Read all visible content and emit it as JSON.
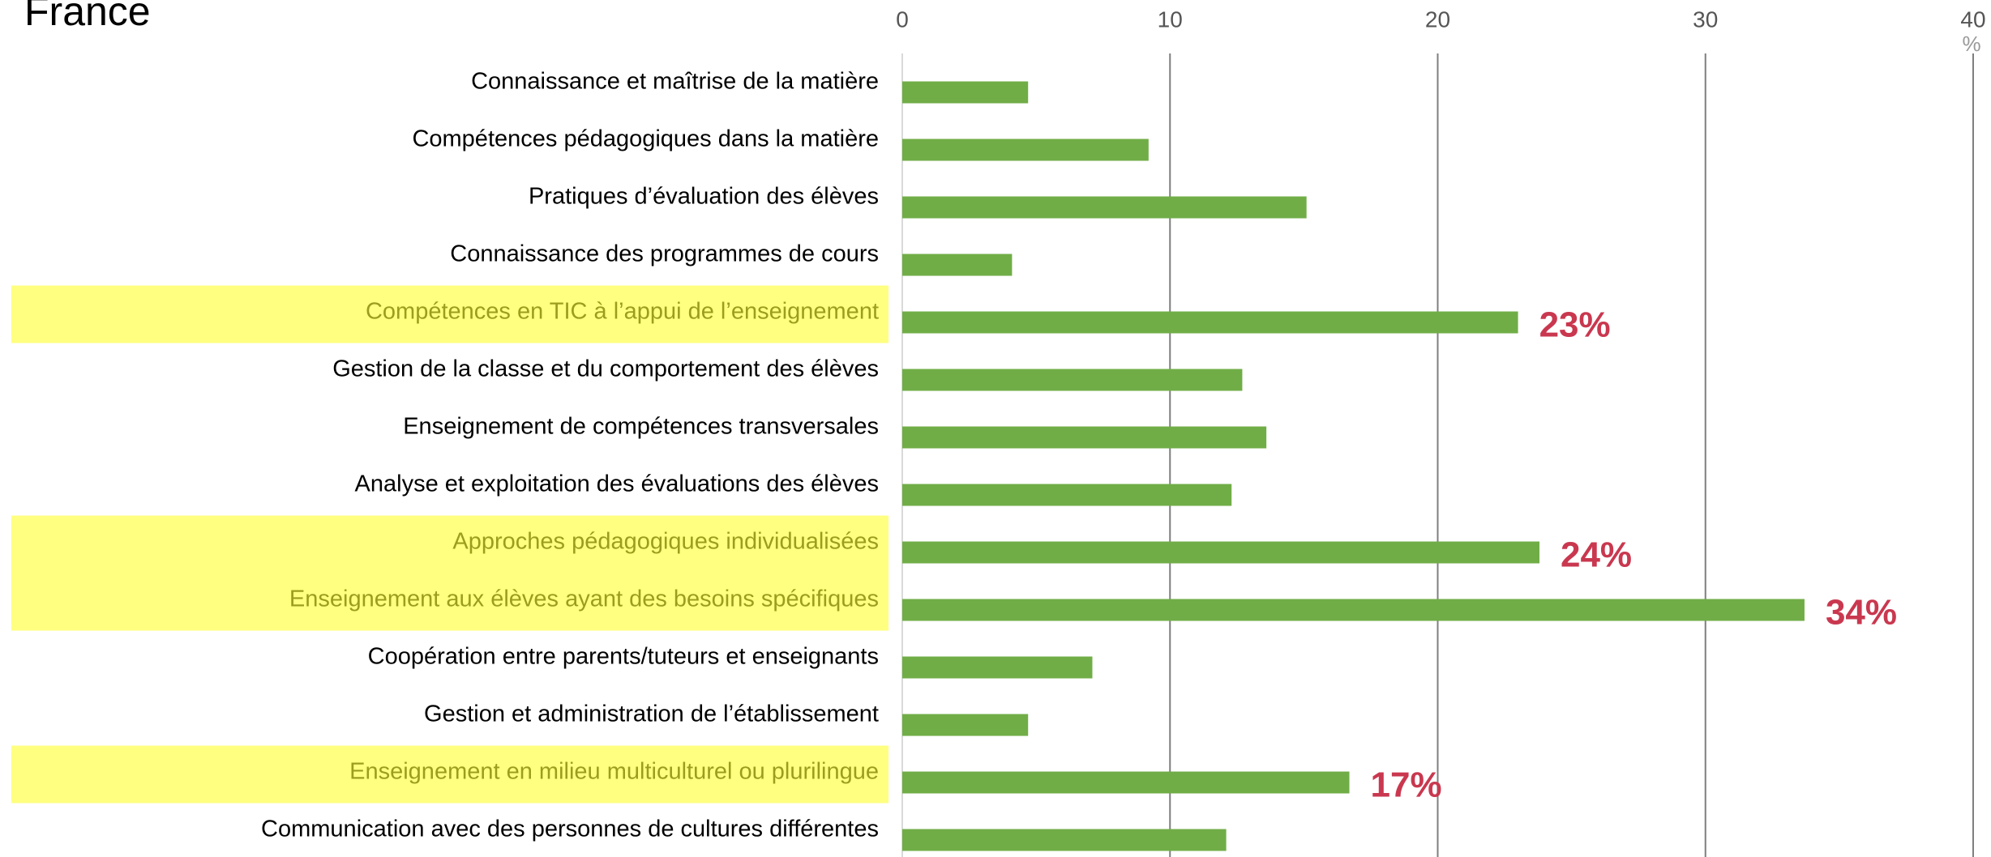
{
  "chart_data": {
    "type": "hbar",
    "title": "France",
    "unit": "%",
    "categories": [
      "Connaissance et maîtrise de la matière",
      "Compétences pédagogiques dans la matière",
      "Pratiques d’évaluation des élèves",
      "Connaissance des programmes de cours",
      "Compétences en TIC à l’appui de l’enseignement",
      "Gestion de la classe et du comportement des élèves",
      "Enseignement de compétences transversales",
      "Analyse et exploitation des évaluations des élèves",
      "Approches pédagogiques individualisées",
      "Enseignement aux élèves ayant des besoins spécifiques",
      "Coopération entre parents/tuteurs et enseignants",
      "Gestion et administration de l’établissement",
      "Enseignement en milieu multiculturel ou plurilingue",
      "Communication avec des personnes de cultures différentes"
    ],
    "values": [
      4.7,
      9.2,
      15.1,
      4.1,
      23.0,
      12.7,
      13.6,
      12.3,
      23.8,
      33.7,
      7.1,
      4.7,
      16.7,
      12.1
    ],
    "value_labels": [
      null,
      null,
      null,
      null,
      "23%",
      null,
      null,
      null,
      "24%",
      "34%",
      null,
      null,
      "17%",
      null
    ],
    "highlighted": [
      4,
      8,
      9,
      12
    ],
    "color": "#70ad47",
    "highlight_color": "#ffff80",
    "label_color": "#c9384f",
    "xlim": [
      0,
      40
    ],
    "xticks": [
      0,
      10,
      20,
      30,
      40
    ],
    "grid": true
  }
}
